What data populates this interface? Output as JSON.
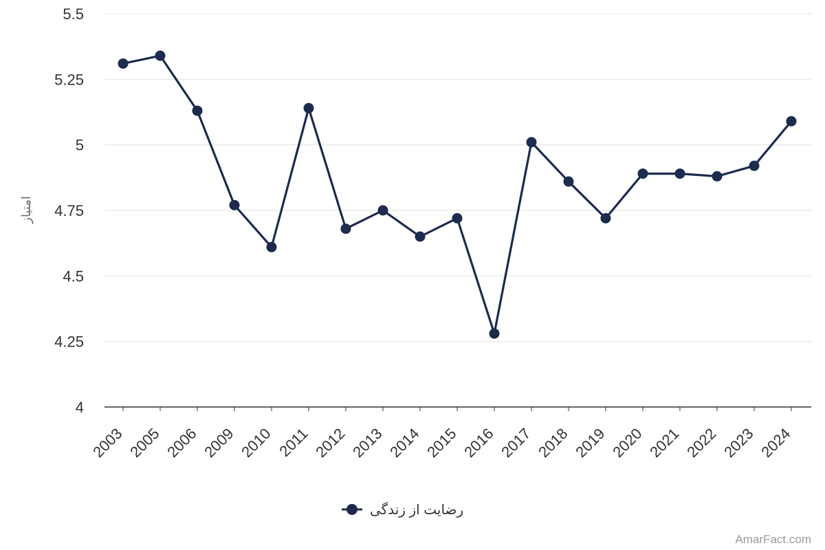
{
  "chart_data": {
    "type": "line",
    "categories": [
      "2003",
      "2005",
      "2006",
      "2009",
      "2010",
      "2011",
      "2012",
      "2013",
      "2014",
      "2015",
      "2016",
      "2017",
      "2018",
      "2019",
      "2020",
      "2021",
      "2022",
      "2023",
      "2024"
    ],
    "series": [
      {
        "name": "رضایت از زندگی",
        "color": "#1c2b4e",
        "values": [
          5.31,
          5.34,
          5.13,
          4.77,
          4.61,
          5.14,
          4.68,
          4.75,
          4.65,
          4.72,
          4.28,
          5.01,
          4.86,
          4.72,
          4.89,
          4.89,
          4.88,
          4.92,
          5.09
        ]
      }
    ],
    "ylabel": "امتیاز",
    "xlabel": "",
    "ylim": [
      4,
      5.5
    ],
    "yticks": [
      "4",
      "4.25",
      "4.5",
      "4.75",
      "5",
      "5.25",
      "5.5"
    ],
    "grid": true,
    "legend_position": "bottom-center"
  },
  "watermark": "AmarFact.com"
}
